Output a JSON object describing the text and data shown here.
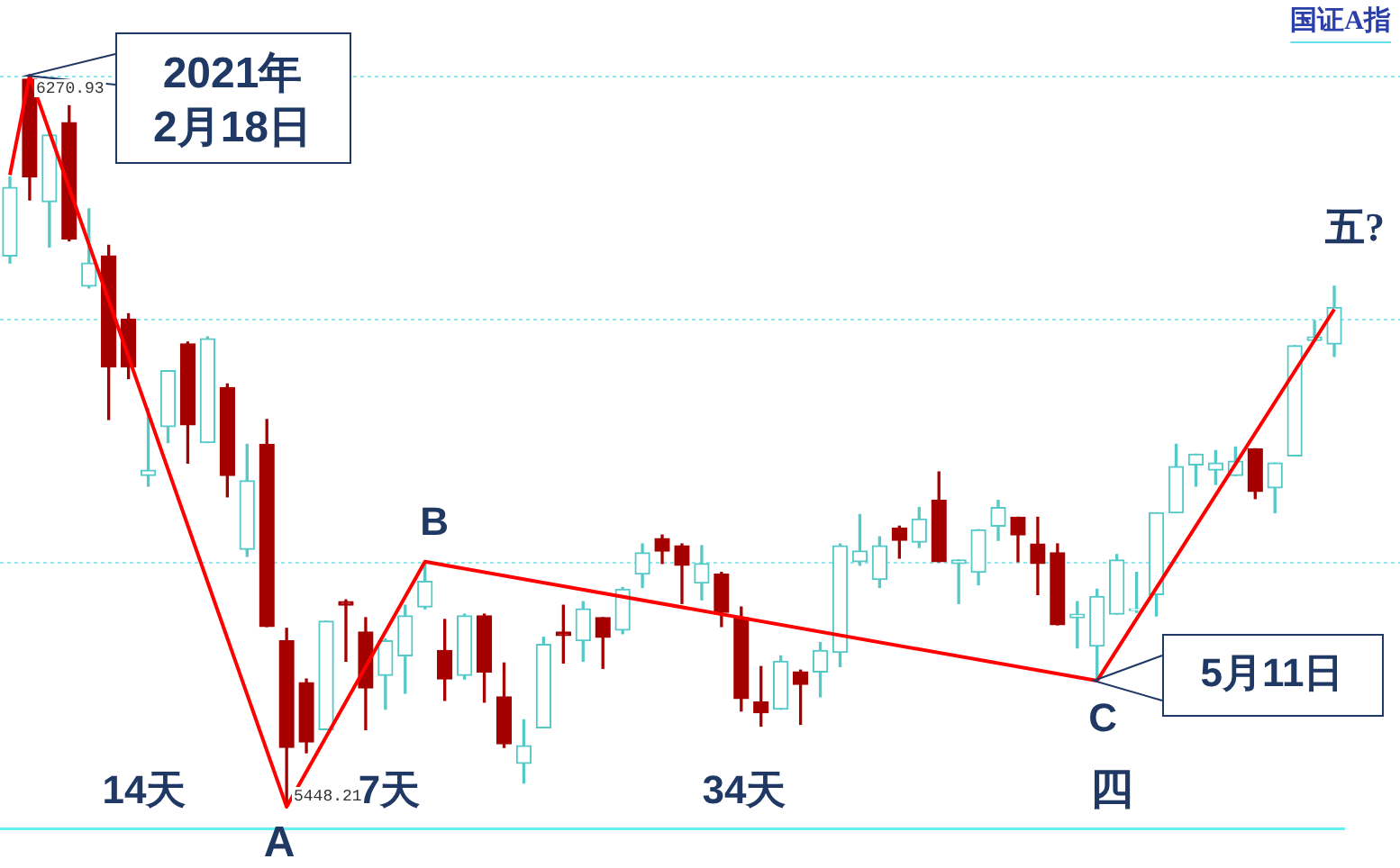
{
  "chart_data": {
    "type": "candlestick",
    "title": "国证A指",
    "categories": [
      null,
      null,
      null,
      null,
      null,
      null,
      null,
      null,
      null,
      null,
      null,
      null,
      null,
      null,
      null,
      null,
      null,
      null,
      null,
      null,
      null,
      null,
      null,
      null,
      null,
      null,
      null,
      null,
      null,
      null,
      null,
      null,
      null,
      null,
      null,
      null,
      null,
      null,
      null,
      null,
      null,
      null,
      null,
      null,
      null,
      null,
      null,
      null,
      null,
      null,
      null,
      null,
      null,
      null,
      null,
      null,
      null,
      null,
      null,
      null,
      null,
      null,
      null,
      null,
      null,
      null,
      null,
      null
    ],
    "ohlc": [
      [
        6068,
        6157,
        6060,
        6145
      ],
      [
        6267,
        6270.93,
        6131,
        6157
      ],
      [
        6129,
        6210,
        6078,
        6204
      ],
      [
        6218,
        6237,
        6085,
        6087
      ],
      [
        6034,
        6121,
        6032,
        6060
      ],
      [
        6068,
        6080,
        5884,
        5943
      ],
      [
        5997,
        6003,
        5930,
        5943
      ],
      [
        5821,
        5896,
        5809,
        5827
      ],
      [
        5876,
        5939,
        5858,
        5939
      ],
      [
        5969,
        5971,
        5835,
        5878
      ],
      [
        5858,
        5977,
        5858,
        5975
      ],
      [
        5920,
        5924,
        5797,
        5821
      ],
      [
        5738,
        5856,
        5730,
        5815
      ],
      [
        5856,
        5884,
        5651,
        5651
      ],
      [
        5635,
        5649,
        5448.21,
        5515
      ],
      [
        5588,
        5592,
        5509,
        5521
      ],
      [
        5535,
        5657,
        5535,
        5657
      ],
      [
        5679,
        5681,
        5612,
        5675
      ],
      [
        5645,
        5661,
        5535,
        5582
      ],
      [
        5596,
        5637,
        5558,
        5635
      ],
      [
        5618,
        5675,
        5576,
        5663
      ],
      [
        5673,
        5724,
        5671,
        5702
      ],
      [
        5624,
        5659,
        5568,
        5592
      ],
      [
        5596,
        5665,
        5592,
        5663
      ],
      [
        5663,
        5665,
        5566,
        5600
      ],
      [
        5572,
        5610,
        5515,
        5519
      ],
      [
        5497,
        5546,
        5475,
        5517
      ],
      [
        5537,
        5639,
        5537,
        5631
      ],
      [
        5645,
        5675,
        5610,
        5641
      ],
      [
        5635,
        5679,
        5612,
        5671
      ],
      [
        5661,
        5661,
        5604,
        5639
      ],
      [
        5647,
        5695,
        5643,
        5693
      ],
      [
        5710,
        5744,
        5695,
        5734
      ],
      [
        5750,
        5754,
        5722,
        5736
      ],
      [
        5742,
        5744,
        5677,
        5720
      ],
      [
        5700,
        5742,
        5681,
        5722
      ],
      [
        5710,
        5712,
        5651,
        5667
      ],
      [
        5661,
        5673,
        5556,
        5570
      ],
      [
        5566,
        5606,
        5539,
        5554
      ],
      [
        5558,
        5618,
        5558,
        5612
      ],
      [
        5600,
        5602,
        5541,
        5586
      ],
      [
        5600,
        5633,
        5572,
        5624
      ],
      [
        5622,
        5744,
        5606,
        5742
      ],
      [
        5724,
        5777,
        5720,
        5736
      ],
      [
        5704,
        5752,
        5695,
        5742
      ],
      [
        5762,
        5764,
        5728,
        5748
      ],
      [
        5746,
        5785,
        5740,
        5772
      ],
      [
        5793,
        5825,
        5724,
        5724
      ],
      [
        5722,
        5726,
        5677,
        5726
      ],
      [
        5712,
        5760,
        5698,
        5760
      ],
      [
        5764,
        5793,
        5748,
        5785
      ],
      [
        5774,
        5774,
        5724,
        5754
      ],
      [
        5744,
        5774,
        5687,
        5722
      ],
      [
        5734,
        5744,
        5653,
        5653
      ],
      [
        5661,
        5679,
        5627,
        5665
      ],
      [
        5629,
        5693,
        5590,
        5685
      ],
      [
        5665,
        5732,
        5665,
        5726
      ],
      [
        5669,
        5712,
        5667,
        5671
      ],
      [
        5687,
        5779,
        5663,
        5779
      ],
      [
        5779,
        5856,
        5779,
        5831
      ],
      [
        5833,
        5845,
        5809,
        5845
      ],
      [
        5827,
        5849,
        5811,
        5835
      ],
      [
        5821,
        5853,
        5821,
        5837
      ],
      [
        5851,
        5851,
        5795,
        5803
      ],
      [
        5807,
        5835,
        5779,
        5835
      ],
      [
        5843,
        5967,
        5843,
        5967
      ],
      [
        5973,
        5995,
        5973,
        5977
      ],
      [
        5969,
        6034,
        5955,
        6010
      ]
    ],
    "colors": [
      "#55c8c8",
      "#a50000",
      "#55c8c8",
      "#a50000",
      "#55c8c8",
      "#a50000",
      "#a50000",
      "#55c8c8",
      "#55c8c8",
      "#a50000",
      "#55c8c8",
      "#a50000",
      "#55c8c8",
      "#a50000",
      "#a50000",
      "#a50000",
      "#55c8c8",
      "#a50000",
      "#a50000",
      "#55c8c8",
      "#55c8c8",
      "#55c8c8",
      "#a50000",
      "#55c8c8",
      "#a50000",
      "#a50000",
      "#55c8c8",
      "#55c8c8",
      "#a50000",
      "#55c8c8",
      "#a50000",
      "#55c8c8",
      "#55c8c8",
      "#a50000",
      "#a50000",
      "#55c8c8",
      "#a50000",
      "#a50000",
      "#a50000",
      "#55c8c8",
      "#a50000",
      "#55c8c8",
      "#55c8c8",
      "#55c8c8",
      "#55c8c8",
      "#a50000",
      "#55c8c8",
      "#a50000",
      "#55c8c8",
      "#55c8c8",
      "#55c8c8",
      "#a50000",
      "#a50000",
      "#a50000",
      "#55c8c8",
      "#55c8c8",
      "#55c8c8",
      "#55c8c8",
      "#55c8c8",
      "#55c8c8",
      "#55c8c8",
      "#55c8c8",
      "#55c8c8",
      "#a50000",
      "#55c8c8",
      "#55c8c8",
      "#55c8c8",
      "#55c8c8"
    ],
    "series": [
      {
        "type": "line",
        "color": "#ff0000",
        "values": [
          6159,
          6270.93,
          null,
          null,
          null,
          null,
          null,
          null,
          null,
          null,
          null,
          null,
          null,
          null,
          5448.21,
          null,
          null,
          null,
          null,
          null,
          null,
          5724,
          null,
          null,
          null,
          null,
          null,
          null,
          null,
          null,
          null,
          null,
          null,
          null,
          null,
          null,
          null,
          null,
          null,
          null,
          null,
          null,
          null,
          null,
          null,
          null,
          null,
          null,
          null,
          null,
          null,
          null,
          null,
          null,
          null,
          5590,
          null,
          null,
          null,
          null,
          null,
          null,
          null,
          null,
          null,
          null,
          null,
          6008
        ]
      }
    ],
    "yticks": [
      {
        "value": 6270.93,
        "label": null
      },
      {
        "value": 5997,
        "label": null
      },
      {
        "value": 5724,
        "label": null
      }
    ],
    "grid": "y",
    "marker": "none",
    "annotations": [
      "2021年\n2月18日",
      "6270.93",
      "5448.21",
      "A",
      "B",
      "C",
      "14天",
      "7天",
      "34天",
      "四",
      "五?",
      "5月11日"
    ]
  }
}
